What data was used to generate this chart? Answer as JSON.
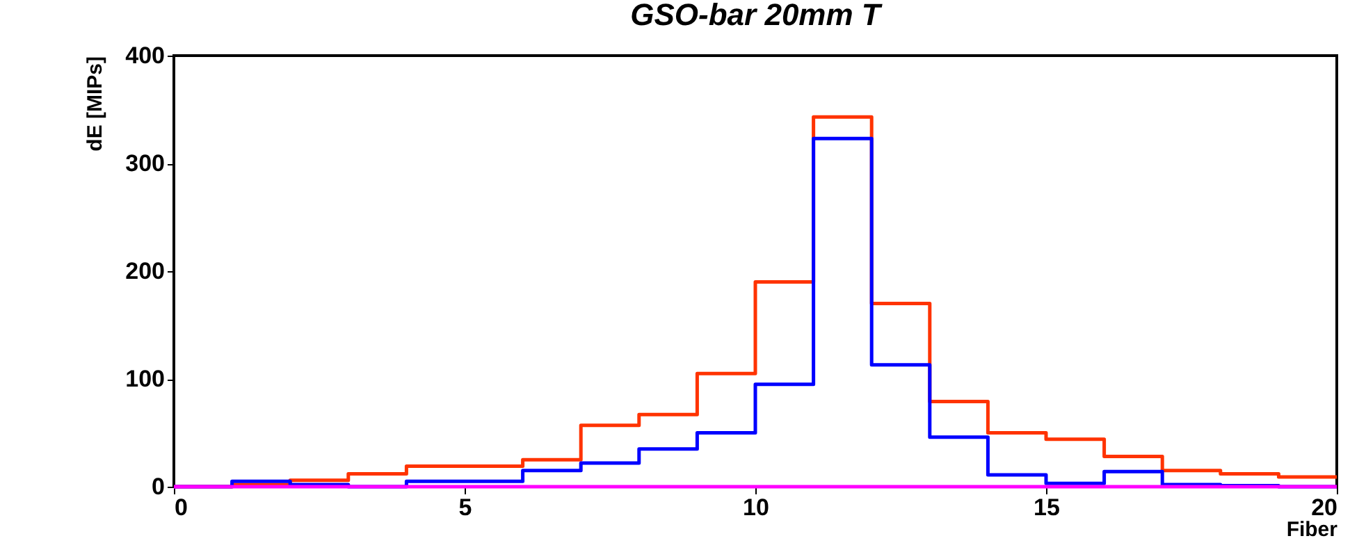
{
  "chart_data": {
    "type": "histogram",
    "title": "GSO-bar 20mm T",
    "xlabel": "Fiber",
    "ylabel": "dE [MIPs]",
    "bins": [
      0,
      1,
      2,
      3,
      4,
      5,
      6,
      7,
      8,
      9,
      10,
      11,
      12,
      13,
      14,
      15,
      16,
      17,
      18,
      19,
      20
    ],
    "series": [
      {
        "color": "#ff3300",
        "values": [
          0,
          2,
          6,
          12,
          19,
          19,
          25,
          57,
          67,
          105,
          190,
          343,
          170,
          79,
          50,
          44,
          28,
          15,
          12,
          9
        ]
      },
      {
        "color": "#0000ff",
        "values": [
          0,
          5,
          2,
          0,
          5,
          5,
          15,
          22,
          35,
          50,
          95,
          323,
          113,
          46,
          11,
          3,
          14,
          2,
          1,
          0
        ]
      },
      {
        "color": "#ff00ff",
        "values": [
          0,
          0,
          0,
          0,
          0,
          0,
          0,
          0,
          0,
          0,
          0,
          0,
          0,
          0,
          0,
          0,
          0,
          0,
          0,
          0
        ]
      }
    ],
    "xlim": [
      0,
      20
    ],
    "ylim": [
      0,
      400
    ],
    "xticks": [
      0,
      5,
      10,
      15,
      20
    ],
    "yticks": [
      0,
      100,
      200,
      300,
      400
    ],
    "grid": false,
    "legend": false
  }
}
